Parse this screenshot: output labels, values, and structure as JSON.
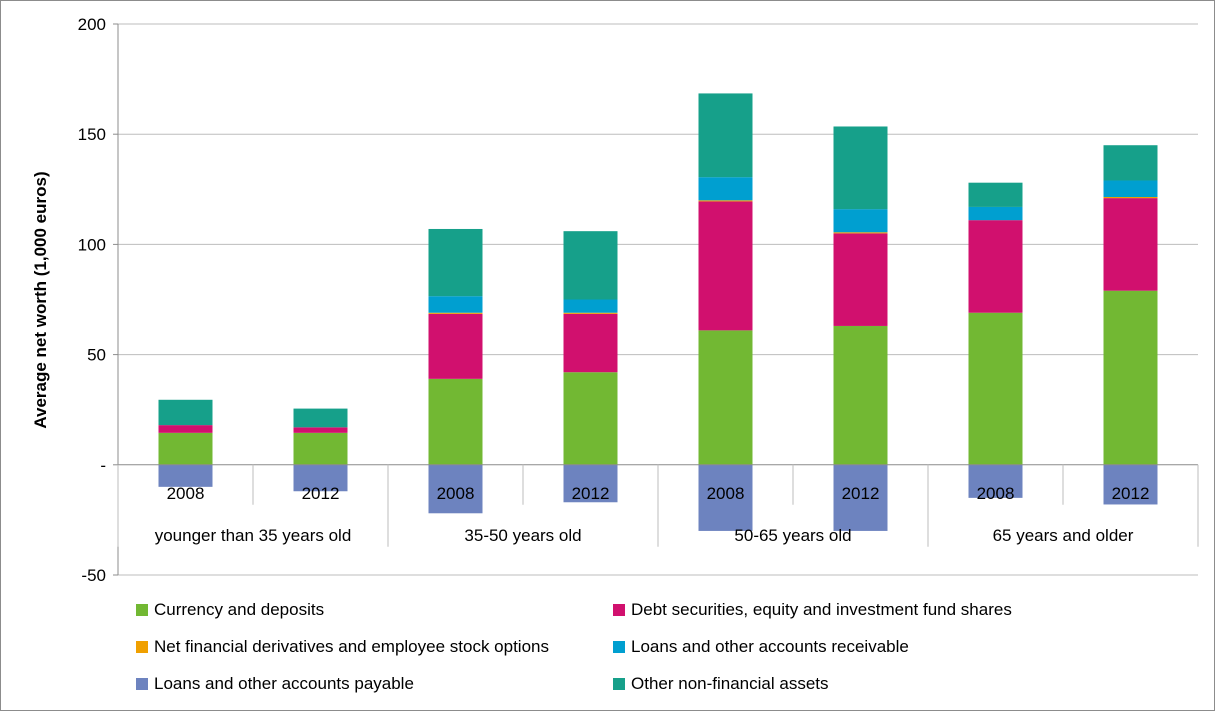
{
  "chart_data": {
    "type": "bar",
    "stacked": true,
    "ylabel": "Average net worth (1,000 euros)",
    "ylim": [
      -50,
      200
    ],
    "yticks": [
      200,
      150,
      100,
      50,
      0,
      -50
    ],
    "ytick_labels": [
      "200",
      "150",
      "100",
      "50",
      "-",
      "-50"
    ],
    "grid": true,
    "legend_position": "bottom",
    "groups": [
      {
        "label": "younger than 35 years old",
        "categories": [
          "2008",
          "2012"
        ]
      },
      {
        "label": "35-50 years old",
        "categories": [
          "2008",
          "2012"
        ]
      },
      {
        "label": "50-65 years old",
        "categories": [
          "2008",
          "2012"
        ]
      },
      {
        "label": "65 years and older",
        "categories": [
          "2008",
          "2012"
        ]
      }
    ],
    "categories": [
      "2008",
      "2012",
      "2008",
      "2012",
      "2008",
      "2012",
      "2008",
      "2012"
    ],
    "series": [
      {
        "name": "Currency and deposits",
        "color": "#72b833",
        "values": [
          14.5,
          14.5,
          39,
          42,
          61,
          63,
          69,
          79
        ]
      },
      {
        "name": "Debt securities, equity and investment fund shares",
        "color": "#d1106e",
        "values": [
          3.5,
          2.5,
          29.5,
          26.5,
          58.5,
          42,
          42,
          42
        ]
      },
      {
        "name": "Net financial derivatives and employee stock options",
        "color": "#f0a000",
        "values": [
          0,
          0,
          0.5,
          0.5,
          0.5,
          0.5,
          0,
          0.5
        ]
      },
      {
        "name": "Loans and other accounts receivable",
        "color": "#009fd0",
        "values": [
          0,
          0,
          7.5,
          6,
          10.5,
          10.5,
          6,
          7.5
        ]
      },
      {
        "name": "Loans and other accounts payable",
        "color": "#6d83bf",
        "values": [
          -10,
          -12,
          -22,
          -17,
          -30,
          -30,
          -15,
          -18
        ]
      },
      {
        "name": "Other non-financial assets",
        "color": "#16a08a",
        "values": [
          11.5,
          8.5,
          30.5,
          31,
          38,
          37.5,
          11,
          16
        ]
      }
    ]
  }
}
